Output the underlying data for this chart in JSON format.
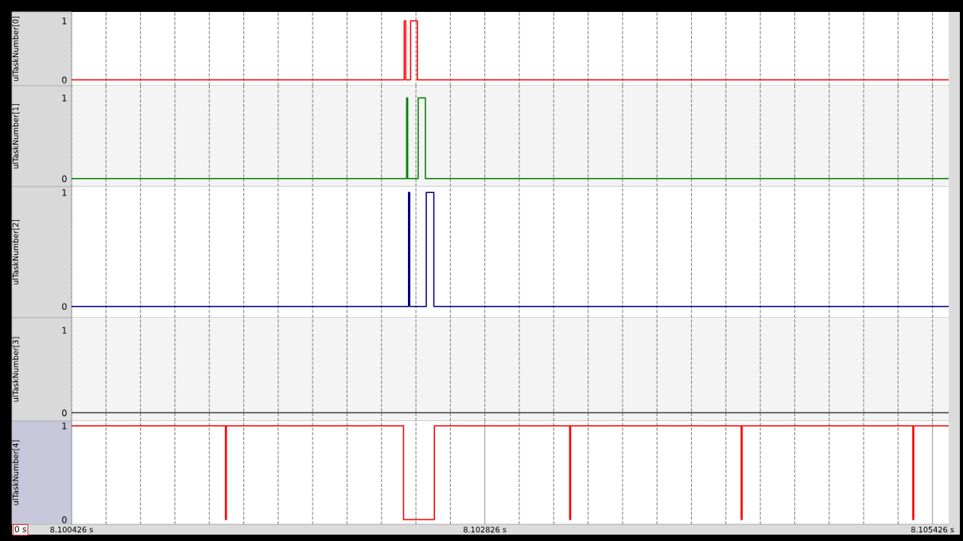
{
  "chart_data": [
    {
      "type": "step",
      "ylabel": "ulTaskNumber[0]",
      "xlim": [
        8.100426,
        8.10552
      ],
      "ylim": [
        -0.1,
        1.15
      ],
      "yticks": [
        0,
        1
      ],
      "grid": "x",
      "tick_labels": "y",
      "line_style": "solid",
      "xticks": [
        {
          "value": 8.100426,
          "label": null
        },
        {
          "value": 8.100626,
          "label": null
        },
        {
          "value": 8.100826,
          "label": null
        },
        {
          "value": 8.101026,
          "label": null
        },
        {
          "value": 8.101226,
          "label": null
        },
        {
          "value": 8.101426,
          "label": null
        },
        {
          "value": 8.101626,
          "label": null
        },
        {
          "value": 8.101826,
          "label": null
        },
        {
          "value": 8.102026,
          "label": null
        },
        {
          "value": 8.102226,
          "label": null
        },
        {
          "value": 8.102426,
          "label": null
        },
        {
          "value": 8.102626,
          "label": null
        },
        {
          "value": 8.102826,
          "label": null
        },
        {
          "value": 8.103026,
          "label": null
        },
        {
          "value": 8.103226,
          "label": null
        },
        {
          "value": 8.103426,
          "label": null
        },
        {
          "value": 8.103626,
          "label": null
        },
        {
          "value": 8.103826,
          "label": null
        },
        {
          "value": 8.104026,
          "label": null
        },
        {
          "value": 8.104226,
          "label": null
        },
        {
          "value": 8.104426,
          "label": null
        },
        {
          "value": 8.104626,
          "label": null
        },
        {
          "value": 8.104826,
          "label": null
        },
        {
          "value": 8.105026,
          "label": null
        },
        {
          "value": 8.105226,
          "label": null
        },
        {
          "value": 8.105426,
          "label": null
        }
      ],
      "series": [
        {
          "color": "#ff0000",
          "x": [
            8.100426,
            8.102358,
            8.102367,
            8.102395,
            8.102434,
            8.10552
          ],
          "values": [
            0,
            1,
            0,
            1,
            0,
            0
          ]
        }
      ]
    },
    {
      "type": "step",
      "ylabel": "ulTaskNumber[1]",
      "xlim": [
        8.100426,
        8.10552
      ],
      "ylim": [
        -0.1,
        1.15
      ],
      "yticks": [
        0,
        1
      ],
      "grid": "x",
      "tick_labels": "y",
      "line_style": "solid",
      "xticks": [
        {
          "value": 8.100426,
          "label": null
        },
        {
          "value": 8.100626,
          "label": null
        },
        {
          "value": 8.100826,
          "label": null
        },
        {
          "value": 8.101026,
          "label": null
        },
        {
          "value": 8.101226,
          "label": null
        },
        {
          "value": 8.101426,
          "label": null
        },
        {
          "value": 8.101626,
          "label": null
        },
        {
          "value": 8.101826,
          "label": null
        },
        {
          "value": 8.102026,
          "label": null
        },
        {
          "value": 8.102226,
          "label": null
        },
        {
          "value": 8.102426,
          "label": null
        },
        {
          "value": 8.102626,
          "label": null
        },
        {
          "value": 8.102826,
          "label": null
        },
        {
          "value": 8.103026,
          "label": null
        },
        {
          "value": 8.103226,
          "label": null
        },
        {
          "value": 8.103426,
          "label": null
        },
        {
          "value": 8.103626,
          "label": null
        },
        {
          "value": 8.103826,
          "label": null
        },
        {
          "value": 8.104026,
          "label": null
        },
        {
          "value": 8.104226,
          "label": null
        },
        {
          "value": 8.104426,
          "label": null
        },
        {
          "value": 8.104626,
          "label": null
        },
        {
          "value": 8.104826,
          "label": null
        },
        {
          "value": 8.105026,
          "label": null
        },
        {
          "value": 8.105226,
          "label": null
        },
        {
          "value": 8.105426,
          "label": null
        }
      ],
      "series": [
        {
          "color": "#008000",
          "x": [
            8.100426,
            8.102372,
            8.102378,
            8.102439,
            8.102481,
            8.10552
          ],
          "values": [
            0,
            1,
            0,
            1,
            0,
            0
          ]
        }
      ]
    },
    {
      "type": "step",
      "ylabel": "ulTaskNumber[2]",
      "xlim": [
        8.100426,
        8.10552
      ],
      "ylim": [
        -0.1,
        1.05
      ],
      "yticks": [
        0,
        1
      ],
      "grid": "x",
      "tick_labels": "y",
      "line_style": "solid",
      "xticks": [
        {
          "value": 8.100426,
          "label": null
        },
        {
          "value": 8.100626,
          "label": null
        },
        {
          "value": 8.100826,
          "label": null
        },
        {
          "value": 8.101026,
          "label": null
        },
        {
          "value": 8.101226,
          "label": null
        },
        {
          "value": 8.101426,
          "label": null
        },
        {
          "value": 8.101626,
          "label": null
        },
        {
          "value": 8.101826,
          "label": null
        },
        {
          "value": 8.102026,
          "label": null
        },
        {
          "value": 8.102226,
          "label": null
        },
        {
          "value": 8.102426,
          "label": null
        },
        {
          "value": 8.102626,
          "label": null
        },
        {
          "value": 8.102826,
          "label": null
        },
        {
          "value": 8.103026,
          "label": null
        },
        {
          "value": 8.103226,
          "label": null
        },
        {
          "value": 8.103426,
          "label": null
        },
        {
          "value": 8.103626,
          "label": null
        },
        {
          "value": 8.103826,
          "label": null
        },
        {
          "value": 8.104026,
          "label": null
        },
        {
          "value": 8.104226,
          "label": null
        },
        {
          "value": 8.104426,
          "label": null
        },
        {
          "value": 8.104626,
          "label": null
        },
        {
          "value": 8.104826,
          "label": null
        },
        {
          "value": 8.105026,
          "label": null
        },
        {
          "value": 8.105226,
          "label": null
        },
        {
          "value": 8.105426,
          "label": null
        }
      ],
      "series": [
        {
          "color": "#000080",
          "x": [
            8.100426,
            8.102383,
            8.10239,
            8.102486,
            8.10253,
            8.10552
          ],
          "values": [
            0,
            1,
            0,
            1,
            0,
            0
          ]
        }
      ]
    },
    {
      "type": "step",
      "ylabel": "ulTaskNumber[3]",
      "xlim": [
        8.100426,
        8.10552
      ],
      "ylim": [
        -0.1,
        1.15
      ],
      "yticks": [
        0,
        1
      ],
      "grid": "x",
      "tick_labels": "y",
      "line_style": "solid",
      "xticks": [
        {
          "value": 8.100426,
          "label": null
        },
        {
          "value": 8.100626,
          "label": null
        },
        {
          "value": 8.100826,
          "label": null
        },
        {
          "value": 8.101026,
          "label": null
        },
        {
          "value": 8.101226,
          "label": null
        },
        {
          "value": 8.101426,
          "label": null
        },
        {
          "value": 8.101626,
          "label": null
        },
        {
          "value": 8.101826,
          "label": null
        },
        {
          "value": 8.102026,
          "label": null
        },
        {
          "value": 8.102226,
          "label": null
        },
        {
          "value": 8.102426,
          "label": null
        },
        {
          "value": 8.102626,
          "label": null
        },
        {
          "value": 8.102826,
          "label": null
        },
        {
          "value": 8.103026,
          "label": null
        },
        {
          "value": 8.103226,
          "label": null
        },
        {
          "value": 8.103426,
          "label": null
        },
        {
          "value": 8.103626,
          "label": null
        },
        {
          "value": 8.103826,
          "label": null
        },
        {
          "value": 8.104026,
          "label": null
        },
        {
          "value": 8.104226,
          "label": null
        },
        {
          "value": 8.104426,
          "label": null
        },
        {
          "value": 8.104626,
          "label": null
        },
        {
          "value": 8.104826,
          "label": null
        },
        {
          "value": 8.105026,
          "label": null
        },
        {
          "value": 8.105226,
          "label": null
        },
        {
          "value": 8.105426,
          "label": null
        }
      ],
      "series": [
        {
          "color": "#404040",
          "x": [
            8.100426,
            8.10552
          ],
          "values": [
            0,
            0
          ]
        }
      ]
    },
    {
      "type": "step",
      "ylabel": "ulTaskNumber[4]",
      "xlim": [
        8.100426,
        8.10552
      ],
      "ylim": [
        -0.05,
        1.05
      ],
      "yticks": [
        0,
        1
      ],
      "grid": "x",
      "line_style": "solid",
      "xticks": [
        {
          "value": 8.100426,
          "label": "8.100426 s"
        },
        {
          "value": 8.100626,
          "label": null
        },
        {
          "value": 8.100826,
          "label": null
        },
        {
          "value": 8.101026,
          "label": null
        },
        {
          "value": 8.101226,
          "label": null
        },
        {
          "value": 8.101426,
          "label": null
        },
        {
          "value": 8.101626,
          "label": null
        },
        {
          "value": 8.101826,
          "label": null
        },
        {
          "value": 8.102026,
          "label": null
        },
        {
          "value": 8.102226,
          "label": null
        },
        {
          "value": 8.102426,
          "label": null
        },
        {
          "value": 8.102626,
          "label": null
        },
        {
          "value": 8.102826,
          "label": "8.102826 s"
        },
        {
          "value": 8.103026,
          "label": null
        },
        {
          "value": 8.103226,
          "label": null
        },
        {
          "value": 8.103426,
          "label": null
        },
        {
          "value": 8.103626,
          "label": null
        },
        {
          "value": 8.103826,
          "label": null
        },
        {
          "value": 8.104026,
          "label": null
        },
        {
          "value": 8.104226,
          "label": null
        },
        {
          "value": 8.104426,
          "label": null
        },
        {
          "value": 8.104626,
          "label": null
        },
        {
          "value": 8.104826,
          "label": null
        },
        {
          "value": 8.105026,
          "label": null
        },
        {
          "value": 8.105226,
          "label": null
        },
        {
          "value": 8.105426,
          "label": "8.105426 s"
        }
      ],
      "annotations": [
        "0 s"
      ],
      "series": [
        {
          "color": "#ff0000",
          "x": [
            8.100426,
            8.10132,
            8.101325,
            8.102354,
            8.102533,
            8.103319,
            8.103324,
            8.104315,
            8.10432,
            8.105312,
            8.105317,
            8.10552
          ],
          "values": [
            1,
            0,
            1,
            0,
            1,
            0,
            1,
            0,
            1,
            0,
            1,
            1
          ]
        }
      ]
    }
  ]
}
